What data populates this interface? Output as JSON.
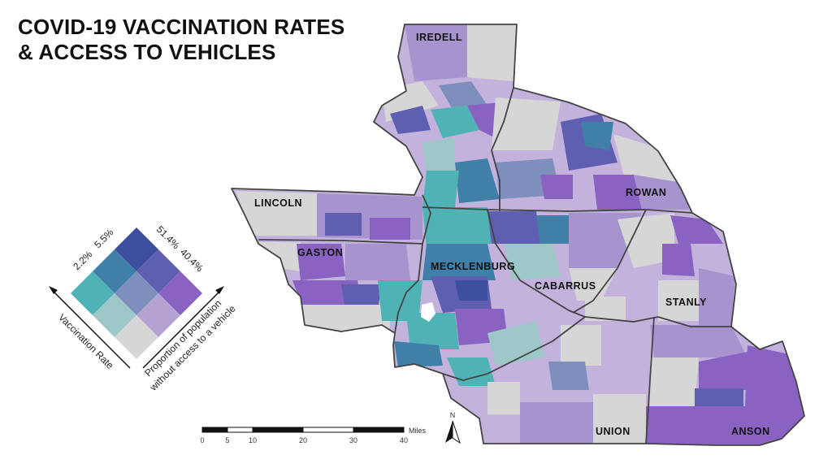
{
  "title": {
    "line1": "COVID-19 VACCINATION RATES",
    "line2": "& ACCESS TO VEHICLES"
  },
  "counties": {
    "iredell": "IREDELL",
    "rowan": "ROWAN",
    "lincoln": "LINCOLN",
    "gaston": "GASTON",
    "mecklenburg": "MECKLENBURG",
    "cabarrus": "CABARRUS",
    "stanly": "STANLY",
    "union": "UNION",
    "anson": "ANSON"
  },
  "legend": {
    "vacc_low": "2.2%",
    "vacc_high": "5.5%",
    "vehicle_high": "51.4%",
    "vehicle_low": "40.4%",
    "x_axis_label": "Vaccination Rate",
    "y_axis_label_line1": "Proportion of population",
    "y_axis_label_line2": "without access to a vehicle",
    "colors": {
      "top": "#3f4fa0",
      "upper_left": "#3f7fa8",
      "upper_right": "#5e5fb0",
      "left": "#4fb3b5",
      "center": "#7e8fbd",
      "right": "#8a62c2",
      "lower_left": "#9ec7c8",
      "lower_right": "#b5a2d3",
      "bottom": "#d6d6d6"
    }
  },
  "scale_bar": {
    "unit": "Miles",
    "ticks": [
      "0",
      "5",
      "10",
      "20",
      "30",
      "40"
    ]
  },
  "north_arrow": "N"
}
